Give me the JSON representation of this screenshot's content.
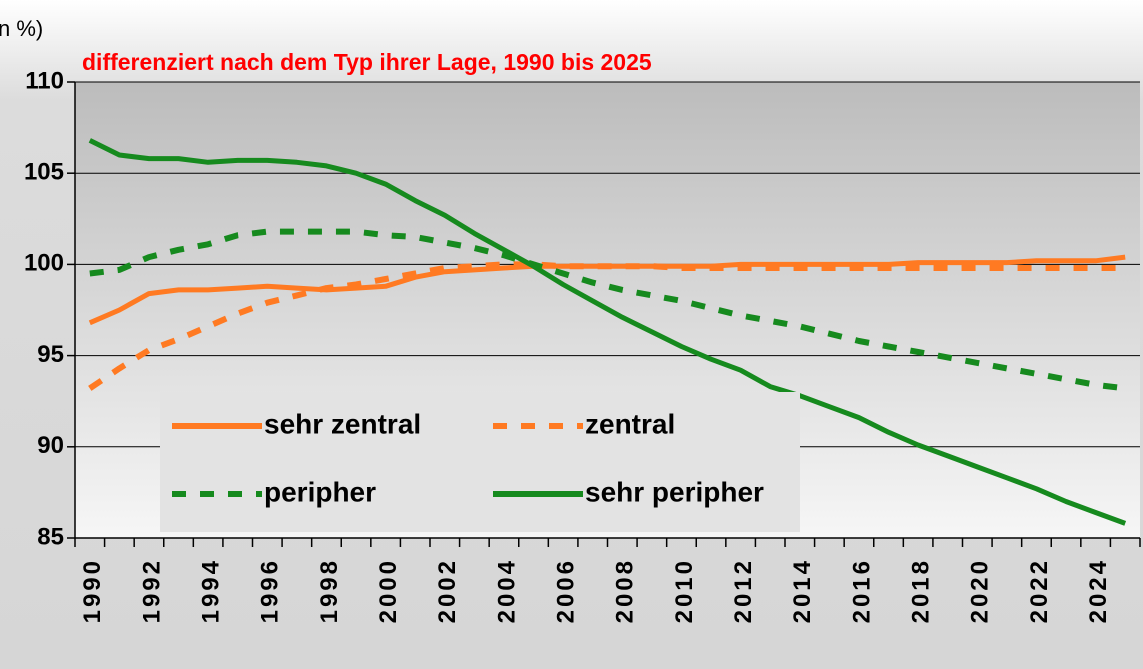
{
  "chart_data": {
    "type": "line",
    "title": "differenziert nach dem Typ ihrer Lage, 1990 bis 2025",
    "ylabel": "n %)",
    "categories": [
      "1990",
      null,
      "1992",
      null,
      "1994",
      null,
      "1996",
      null,
      "1998",
      null,
      "2000",
      null,
      "2002",
      null,
      "2004",
      null,
      "2006",
      null,
      "2008",
      null,
      "2010",
      null,
      "2012",
      null,
      "2014",
      null,
      "2016",
      null,
      "2018",
      null,
      "2020",
      null,
      "2022",
      null,
      "2024",
      null
    ],
    "series": [
      {
        "name": "sehr zentral",
        "color": "#ff7a22",
        "style": "solid",
        "values": [
          96.8,
          97.5,
          98.4,
          98.6,
          98.6,
          98.7,
          98.8,
          98.7,
          98.6,
          98.7,
          98.8,
          99.3,
          99.6,
          99.7,
          99.8,
          99.9,
          99.9,
          99.9,
          99.9,
          99.9,
          99.9,
          99.9,
          100.0,
          100.0,
          100.0,
          100.0,
          100.0,
          100.0,
          100.1,
          100.1,
          100.1,
          100.1,
          100.2,
          100.2,
          100.2,
          100.4
        ]
      },
      {
        "name": "zentral",
        "color": "#ff7a22",
        "style": "dashed",
        "values": [
          93.2,
          94.3,
          95.3,
          95.9,
          96.6,
          97.3,
          97.9,
          98.3,
          98.7,
          98.9,
          99.2,
          99.5,
          99.8,
          99.9,
          100.0,
          100.0,
          99.9,
          99.9,
          99.9,
          99.9,
          99.8,
          99.8,
          99.8,
          99.8,
          99.8,
          99.8,
          99.8,
          99.8,
          99.8,
          99.8,
          99.8,
          99.8,
          99.8,
          99.8,
          99.8,
          99.8
        ]
      },
      {
        "name": "peripher",
        "color": "#168a1e",
        "style": "dashed",
        "values": [
          99.5,
          99.7,
          100.4,
          100.8,
          101.1,
          101.6,
          101.8,
          101.8,
          101.8,
          101.8,
          101.6,
          101.5,
          101.2,
          100.9,
          100.5,
          100.0,
          99.5,
          99.0,
          98.6,
          98.3,
          98.0,
          97.6,
          97.2,
          96.9,
          96.6,
          96.2,
          95.8,
          95.5,
          95.2,
          94.9,
          94.6,
          94.3,
          94.0,
          93.7,
          93.4,
          93.2
        ]
      },
      {
        "name": "sehr peripher",
        "color": "#168a1e",
        "style": "solid",
        "values": [
          106.8,
          106.0,
          105.8,
          105.8,
          105.6,
          105.7,
          105.7,
          105.6,
          105.4,
          105.0,
          104.4,
          103.5,
          102.7,
          101.7,
          100.8,
          99.9,
          98.9,
          98.0,
          97.1,
          96.3,
          95.5,
          94.8,
          94.2,
          93.3,
          92.8,
          92.2,
          91.6,
          90.8,
          90.1,
          89.5,
          88.9,
          88.3,
          87.7,
          87.0,
          86.4,
          85.8
        ]
      }
    ],
    "ylim": [
      85,
      110
    ],
    "yticks": [
      85,
      90,
      95,
      100,
      105,
      110
    ],
    "grid": true,
    "legend": "lower left"
  }
}
